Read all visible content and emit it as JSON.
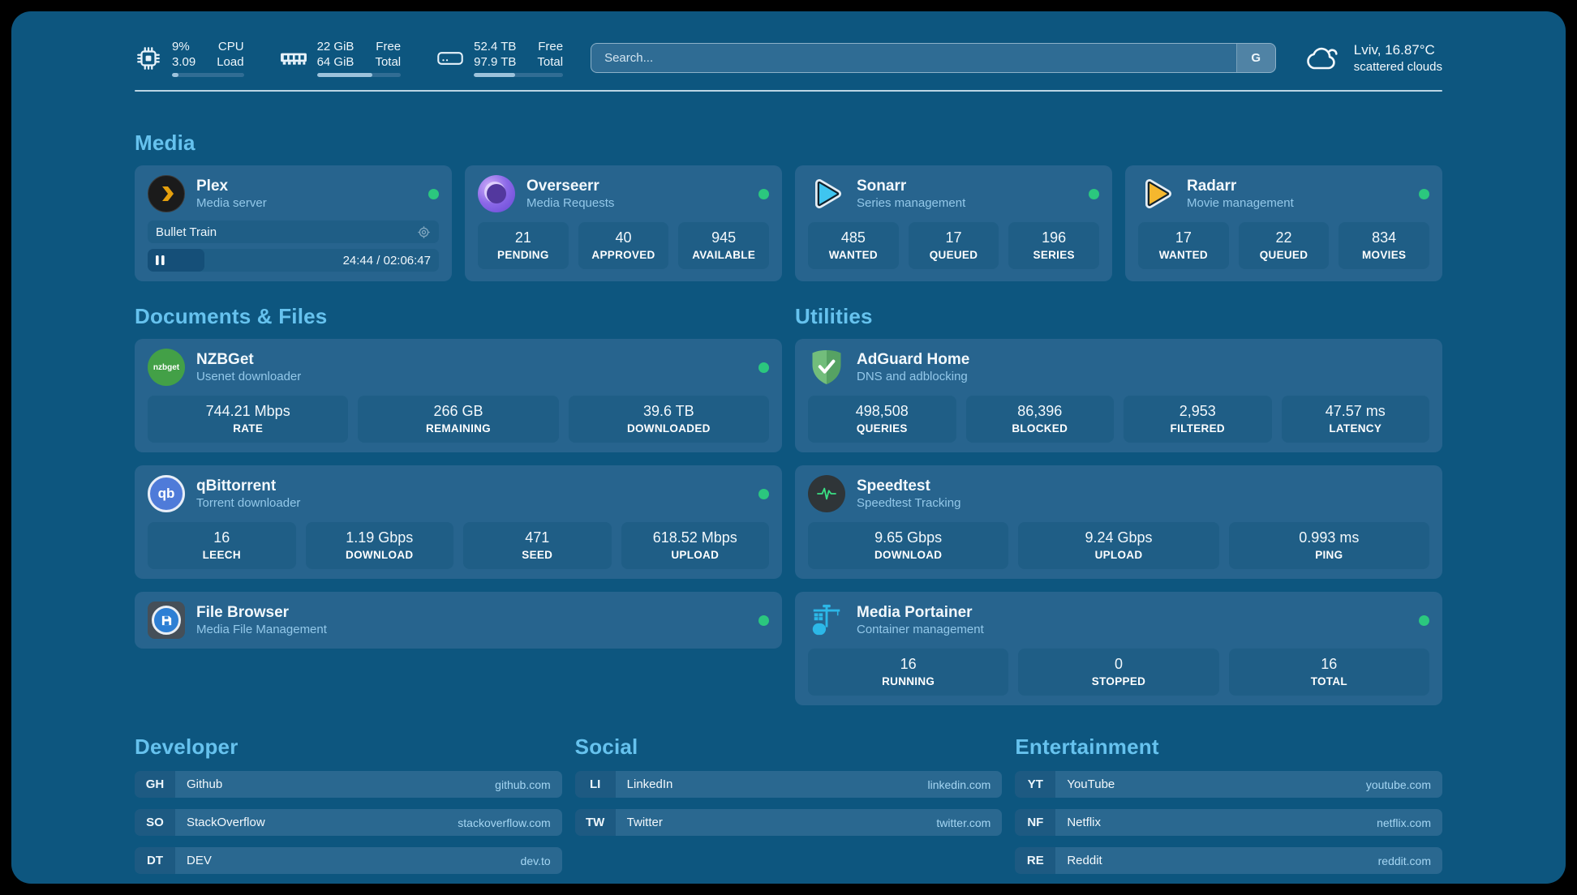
{
  "colors": {
    "page-bg": "#0d567f",
    "card-bg": "#27648e",
    "tile-bg": "#1f5e86",
    "abbr-bg": "#1d5a82",
    "row-bg": "#2a6890",
    "section-title": "#66c2ee",
    "status-online": "#2bc77e",
    "subtitle-text": "#93c8e9",
    "link-url": "#a5d6f3",
    "primary-text": "#f2f8fc",
    "divider": "#cfe3ef",
    "progress-track-header": "#316d94",
    "progress-fill-header": "#9dc3dc"
  },
  "header": {
    "system_stats": [
      {
        "icon": "cpu",
        "values": [
          "9%",
          "3.09"
        ],
        "labels": [
          "CPU",
          "Load"
        ],
        "progress_pct": 9
      },
      {
        "icon": "ram",
        "values": [
          "22 GiB",
          "64 GiB"
        ],
        "labels": [
          "Free",
          "Total"
        ],
        "progress_pct": 66
      },
      {
        "icon": "disk",
        "values": [
          "52.4 TB",
          "97.9 TB"
        ],
        "labels": [
          "Free",
          "Total"
        ],
        "progress_pct": 46
      }
    ],
    "search": {
      "placeholder": "Search...",
      "engine_button": "G"
    },
    "weather": {
      "location_temperature": "Lviv, 16.87°C",
      "condition": "scattered clouds"
    }
  },
  "sections": {
    "media": {
      "title": "Media",
      "plex": {
        "title": "Plex",
        "subtitle": "Media server",
        "status": "online",
        "now_playing": {
          "name": "Bullet Train",
          "time_display": "24:44 / 02:06:47",
          "progress_pct": 19.5
        }
      },
      "overseerr": {
        "title": "Overseerr",
        "subtitle": "Media Requests",
        "status": "online",
        "stats": [
          {
            "value": "21",
            "label": "PENDING"
          },
          {
            "value": "40",
            "label": "APPROVED"
          },
          {
            "value": "945",
            "label": "AVAILABLE"
          }
        ]
      },
      "sonarr": {
        "title": "Sonarr",
        "subtitle": "Series management",
        "status": "online",
        "stats": [
          {
            "value": "485",
            "label": "WANTED"
          },
          {
            "value": "17",
            "label": "QUEUED"
          },
          {
            "value": "196",
            "label": "SERIES"
          }
        ]
      },
      "radarr": {
        "title": "Radarr",
        "subtitle": "Movie management",
        "status": "online",
        "stats": [
          {
            "value": "17",
            "label": "WANTED"
          },
          {
            "value": "22",
            "label": "QUEUED"
          },
          {
            "value": "834",
            "label": "MOVIES"
          }
        ]
      }
    },
    "documents": {
      "title": "Documents & Files",
      "nzbget": {
        "title": "NZBGet",
        "subtitle": "Usenet downloader",
        "status": "online",
        "stats": [
          {
            "value": "744.21 Mbps",
            "label": "RATE"
          },
          {
            "value": "266 GB",
            "label": "REMAINING"
          },
          {
            "value": "39.6 TB",
            "label": "DOWNLOADED"
          }
        ]
      },
      "qbittorrent": {
        "title": "qBittorrent",
        "subtitle": "Torrent downloader",
        "status": "online",
        "stats": [
          {
            "value": "16",
            "label": "LEECH"
          },
          {
            "value": "1.19 Gbps",
            "label": "DOWNLOAD"
          },
          {
            "value": "471",
            "label": "SEED"
          },
          {
            "value": "618.52 Mbps",
            "label": "UPLOAD"
          }
        ]
      },
      "filebrowser": {
        "title": "File Browser",
        "subtitle": "Media File Management",
        "status": "online"
      }
    },
    "utilities": {
      "title": "Utilities",
      "adguard": {
        "title": "AdGuard Home",
        "subtitle": "DNS and adblocking",
        "stats": [
          {
            "value": "498,508",
            "label": "QUERIES"
          },
          {
            "value": "86,396",
            "label": "BLOCKED"
          },
          {
            "value": "2,953",
            "label": "FILTERED"
          },
          {
            "value": "47.57 ms",
            "label": "LATENCY"
          }
        ]
      },
      "speedtest": {
        "title": "Speedtest",
        "subtitle": "Speedtest Tracking",
        "stats": [
          {
            "value": "9.65 Gbps",
            "label": "DOWNLOAD"
          },
          {
            "value": "9.24 Gbps",
            "label": "UPLOAD"
          },
          {
            "value": "0.993 ms",
            "label": "PING"
          }
        ]
      },
      "portainer": {
        "title": "Media Portainer",
        "subtitle": "Container management",
        "status": "online",
        "stats": [
          {
            "value": "16",
            "label": "RUNNING"
          },
          {
            "value": "0",
            "label": "STOPPED"
          },
          {
            "value": "16",
            "label": "TOTAL"
          }
        ]
      }
    },
    "bookmarks": [
      {
        "title": "Developer",
        "links": [
          {
            "abbr": "GH",
            "name": "Github",
            "url": "github.com"
          },
          {
            "abbr": "SO",
            "name": "StackOverflow",
            "url": "stackoverflow.com"
          },
          {
            "abbr": "DT",
            "name": "DEV",
            "url": "dev.to"
          }
        ]
      },
      {
        "title": "Social",
        "links": [
          {
            "abbr": "LI",
            "name": "LinkedIn",
            "url": "linkedin.com"
          },
          {
            "abbr": "TW",
            "name": "Twitter",
            "url": "twitter.com"
          }
        ]
      },
      {
        "title": "Entertainment",
        "links": [
          {
            "abbr": "YT",
            "name": "YouTube",
            "url": "youtube.com"
          },
          {
            "abbr": "NF",
            "name": "Netflix",
            "url": "netflix.com"
          },
          {
            "abbr": "RE",
            "name": "Reddit",
            "url": "reddit.com"
          }
        ]
      }
    ]
  }
}
